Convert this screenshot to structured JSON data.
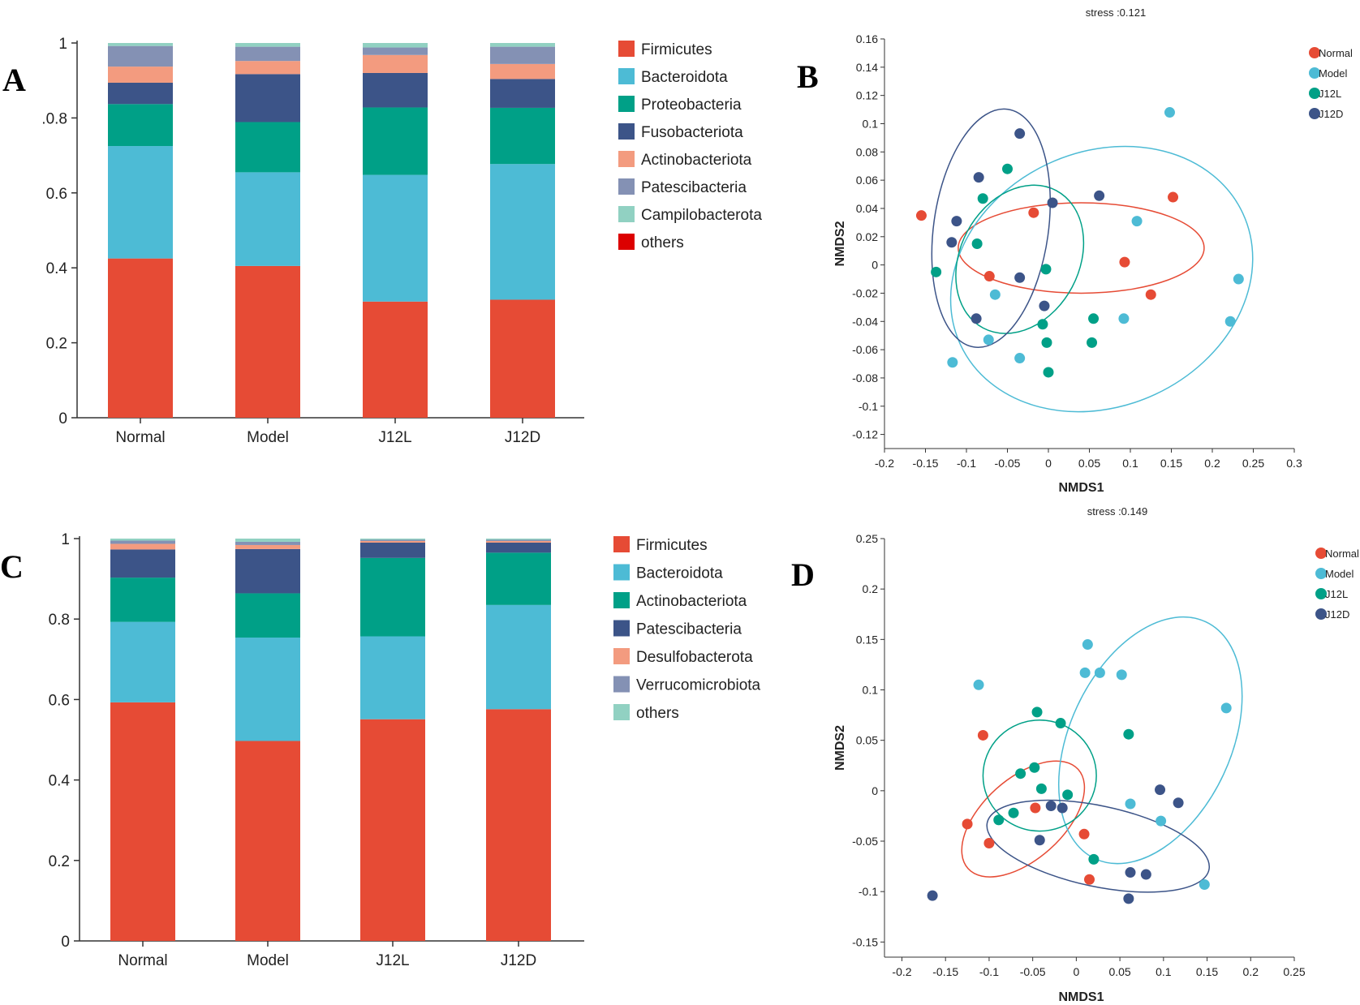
{
  "panels": {
    "A": {
      "letter": "A"
    },
    "B": {
      "letter": "B"
    },
    "C": {
      "letter": "C"
    },
    "D": {
      "letter": "D"
    }
  },
  "chart_data": [
    {
      "id": "A",
      "type": "bar",
      "stacked": true,
      "categories": [
        "Normal",
        "Model",
        "J12L",
        "J12D"
      ],
      "ylim": [
        0,
        1
      ],
      "yticks": [
        "0",
        "0.2",
        "0.4",
        "0.6",
        ".0.8",
        "1"
      ],
      "legend_position": "right",
      "series": [
        {
          "name": "Firmicutes",
          "color": "#E64B35",
          "values": [
            0.425,
            0.405,
            0.31,
            0.315
          ]
        },
        {
          "name": "Bacteroidota",
          "color": "#4DBBD5",
          "values": [
            0.3,
            0.25,
            0.338,
            0.362
          ]
        },
        {
          "name": "Proteobacteria",
          "color": "#00A087",
          "values": [
            0.112,
            0.134,
            0.18,
            0.15
          ]
        },
        {
          "name": "Fusobacteriota",
          "color": "#3C5488",
          "values": [
            0.057,
            0.128,
            0.092,
            0.077
          ]
        },
        {
          "name": "Actinobacteriota",
          "color": "#F39B7F",
          "values": [
            0.043,
            0.035,
            0.048,
            0.04
          ]
        },
        {
          "name": "Patescibacteria",
          "color": "#8491B4",
          "values": [
            0.055,
            0.038,
            0.02,
            0.046
          ]
        },
        {
          "name": "Campilobacterota",
          "color": "#91D1C2",
          "values": [
            0.008,
            0.01,
            0.012,
            0.01
          ]
        },
        {
          "name": "others",
          "color": "#DC0000",
          "values": [
            0,
            0,
            0,
            0
          ]
        }
      ]
    },
    {
      "id": "B",
      "type": "scatter",
      "title": "stress :0.121",
      "xlabel": "NMDS1",
      "ylabel": "NMDS2",
      "xlim": [
        -0.2,
        0.3
      ],
      "ylim": [
        -0.13,
        0.16
      ],
      "xticks": [
        "-0.2",
        "-0.15",
        "-0.1",
        "-0.05",
        "0",
        "0.05",
        "0.1",
        "0.15",
        "0.2",
        "0.25",
        "0.3"
      ],
      "xtick_values": [
        -0.2,
        -0.15,
        -0.1,
        -0.05,
        0,
        0.05,
        0.1,
        0.15,
        0.2,
        0.25,
        0.3
      ],
      "yticks": [
        "0.16",
        "0.14",
        "0.12",
        "0.1",
        "0.08",
        "0.06",
        "0.04",
        "0.02",
        "0",
        "-0.02",
        "-0.04",
        "-0.06",
        "-0.08",
        "-0.1",
        "-0.12"
      ],
      "ytick_values": [
        0.16,
        0.14,
        0.12,
        0.1,
        0.08,
        0.06,
        0.04,
        0.02,
        0,
        -0.02,
        -0.04,
        -0.06,
        -0.08,
        -0.1,
        -0.12
      ],
      "legend_position": "top-right",
      "series": [
        {
          "name": "Normal",
          "color": "#E64B35",
          "points": [
            [
              -0.155,
              0.035
            ],
            [
              -0.072,
              -0.008
            ],
            [
              -0.018,
              0.037
            ],
            [
              0.093,
              0.002
            ],
            [
              0.125,
              -0.021
            ],
            [
              0.152,
              0.048
            ]
          ],
          "ellipse": {
            "cx": 0.04,
            "cy": 0.012,
            "rx": 0.15,
            "ry": 0.032,
            "angle": 0
          }
        },
        {
          "name": "Model",
          "color": "#4DBBD5",
          "points": [
            [
              0.148,
              0.108
            ],
            [
              0.108,
              0.031
            ],
            [
              0.232,
              -0.01
            ],
            [
              0.222,
              -0.04
            ],
            [
              -0.065,
              -0.021
            ],
            [
              -0.073,
              -0.053
            ],
            [
              -0.035,
              -0.066
            ],
            [
              0.092,
              -0.038
            ],
            [
              -0.117,
              -0.069
            ]
          ],
          "ellipse": {
            "cx": 0.065,
            "cy": -0.01,
            "rx": 0.19,
            "ry": 0.09,
            "angle": -25
          }
        },
        {
          "name": "J12L",
          "color": "#00A087",
          "points": [
            [
              -0.05,
              0.068
            ],
            [
              -0.08,
              0.047
            ],
            [
              -0.087,
              0.015
            ],
            [
              -0.137,
              -0.005
            ],
            [
              -0.003,
              -0.003
            ],
            [
              -0.007,
              -0.042
            ],
            [
              -0.002,
              -0.055
            ],
            [
              0.055,
              -0.038
            ],
            [
              0.053,
              -0.055
            ],
            [
              0,
              -0.076
            ]
          ],
          "ellipse": {
            "cx": -0.035,
            "cy": 0.004,
            "rx": 0.095,
            "ry": 0.042,
            "angle": -62
          }
        },
        {
          "name": "J12D",
          "color": "#3C5488",
          "points": [
            [
              -0.035,
              0.093
            ],
            [
              -0.085,
              0.062
            ],
            [
              -0.112,
              0.031
            ],
            [
              -0.118,
              0.016
            ],
            [
              0.005,
              0.044
            ],
            [
              0.062,
              0.049
            ],
            [
              -0.035,
              -0.009
            ],
            [
              -0.005,
              -0.029
            ],
            [
              -0.088,
              -0.038
            ]
          ],
          "ellipse": {
            "cx": -0.07,
            "cy": 0.026,
            "rx": 0.07,
            "ry": 0.085,
            "angle": 8
          }
        }
      ]
    },
    {
      "id": "C",
      "type": "bar",
      "stacked": true,
      "categories": [
        "Normal",
        "Model",
        "J12L",
        "J12D"
      ],
      "ylim": [
        0,
        1
      ],
      "yticks": [
        "0",
        "0.2",
        "0.4",
        "0.6",
        "0.8",
        "1"
      ],
      "legend_position": "right",
      "series": [
        {
          "name": "Firmicutes",
          "color": "#E64B35",
          "values": [
            0.593,
            0.497,
            0.551,
            0.576
          ]
        },
        {
          "name": "Bacteroidota",
          "color": "#4DBBD5",
          "values": [
            0.2,
            0.257,
            0.206,
            0.259
          ]
        },
        {
          "name": "Actinobacteriota",
          "color": "#00A087",
          "values": [
            0.11,
            0.11,
            0.195,
            0.13
          ]
        },
        {
          "name": "Patescibacteria",
          "color": "#3C5488",
          "values": [
            0.07,
            0.11,
            0.038,
            0.025
          ]
        },
        {
          "name": "Desulfobacterota",
          "color": "#F39B7F",
          "values": [
            0.014,
            0.01,
            0.004,
            0.004
          ]
        },
        {
          "name": "Verrucomicrobiota",
          "color": "#8491B4",
          "values": [
            0.008,
            0.008,
            0.003,
            0.003
          ]
        },
        {
          "name": "others",
          "color": "#91D1C2",
          "values": [
            0.005,
            0.008,
            0.003,
            0.003
          ]
        }
      ]
    },
    {
      "id": "D",
      "type": "scatter",
      "title": "stress :0.149",
      "xlabel": "NMDS1",
      "ylabel": "NMDS2",
      "xlim": [
        -0.22,
        0.25
      ],
      "ylim": [
        -0.165,
        0.25
      ],
      "xticks": [
        "-0.2",
        "-0.15",
        "-0.1",
        "-0.05",
        "0",
        "0.05",
        "0.1",
        "0.15",
        "0.2",
        "0.25"
      ],
      "xtick_values": [
        -0.2,
        -0.15,
        -0.1,
        -0.05,
        0,
        0.05,
        0.1,
        0.15,
        0.2,
        0.25
      ],
      "yticks": [
        "0.25",
        "0.2",
        "0.15",
        "0.1",
        "0.05",
        "0",
        "-0.05",
        "-0.1",
        "-0.15"
      ],
      "ytick_values": [
        0.25,
        0.2,
        0.15,
        0.1,
        0.05,
        0,
        -0.05,
        -0.1,
        -0.15
      ],
      "legend_position": "top-right",
      "series": [
        {
          "name": "Normal",
          "color": "#E64B35",
          "points": [
            [
              -0.107,
              0.055
            ],
            [
              -0.125,
              -0.033
            ],
            [
              -0.1,
              -0.052
            ],
            [
              -0.047,
              -0.017
            ],
            [
              0.009,
              -0.043
            ],
            [
              0.015,
              -0.088
            ]
          ],
          "ellipse": {
            "cx": -0.061,
            "cy": -0.028,
            "rx": 0.085,
            "ry": 0.04,
            "angle": -42
          }
        },
        {
          "name": "Model",
          "color": "#4DBBD5",
          "points": [
            [
              -0.112,
              0.105
            ],
            [
              0.013,
              0.145
            ],
            [
              0.01,
              0.117
            ],
            [
              0.027,
              0.117
            ],
            [
              0.052,
              0.115
            ],
            [
              0.172,
              0.082
            ],
            [
              0.062,
              -0.013
            ],
            [
              0.097,
              -0.03
            ],
            [
              0.147,
              -0.093
            ]
          ],
          "ellipse": {
            "cx": 0.085,
            "cy": 0.05,
            "rx": 0.15,
            "ry": 0.08,
            "angle": -65
          }
        },
        {
          "name": "J12L",
          "color": "#00A087",
          "points": [
            [
              -0.045,
              0.078
            ],
            [
              -0.018,
              0.067
            ],
            [
              0.06,
              0.056
            ],
            [
              -0.064,
              0.017
            ],
            [
              -0.048,
              0.023
            ],
            [
              -0.04,
              0.002
            ],
            [
              -0.01,
              -0.004
            ],
            [
              -0.072,
              -0.022
            ],
            [
              -0.089,
              -0.029
            ],
            [
              0.02,
              -0.068
            ]
          ],
          "ellipse": {
            "cx": -0.042,
            "cy": 0.015,
            "rx": 0.065,
            "ry": 0.055,
            "angle": 0
          }
        },
        {
          "name": "J12D",
          "color": "#3C5488",
          "points": [
            [
              0.096,
              0.001
            ],
            [
              0.117,
              -0.012
            ],
            [
              -0.029,
              -0.015
            ],
            [
              -0.016,
              -0.017
            ],
            [
              -0.042,
              -0.049
            ],
            [
              0.062,
              -0.081
            ],
            [
              0.08,
              -0.083
            ],
            [
              0.06,
              -0.107
            ],
            [
              -0.165,
              -0.104
            ]
          ],
          "ellipse": {
            "cx": 0.025,
            "cy": -0.055,
            "rx": 0.13,
            "ry": 0.04,
            "angle": 12
          }
        }
      ]
    }
  ]
}
